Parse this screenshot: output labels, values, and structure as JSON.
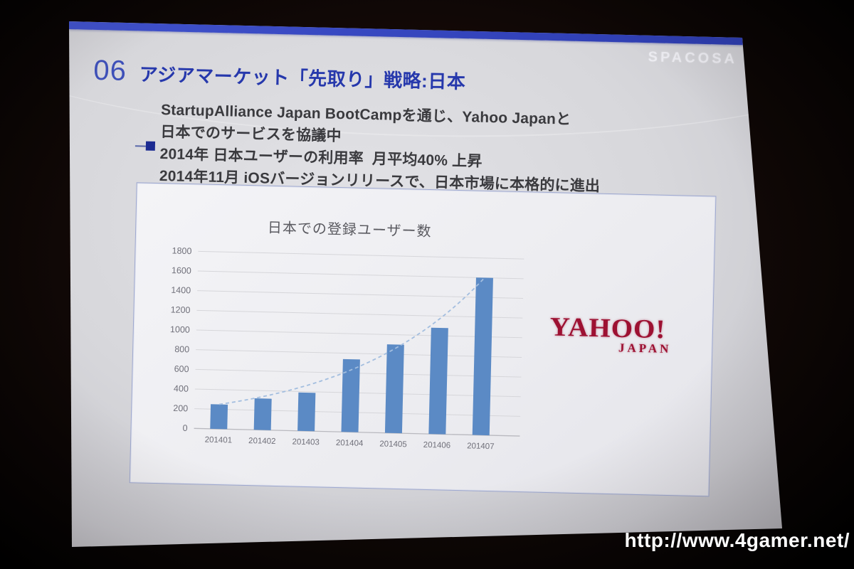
{
  "photo": {
    "watermark_url": "http://www.4gamer.net/"
  },
  "slide": {
    "brand": "SPACOSA",
    "number": "06",
    "title": "アジアマーケット「先取り」戦略:日本",
    "bullets": [
      "StartupAlliance Japan BootCampを通じ、Yahoo Japanと",
      "日本でのサービスを協議中",
      "2014年 日本ユーザーの利用率  月平均40% 上昇",
      "2014年11月 iOSバージョンリリースで、日本市場に本格的に進出"
    ]
  },
  "chart_data": {
    "type": "bar",
    "title": "日本での登録ユーザー数",
    "categories": [
      "201401",
      "201402",
      "201403",
      "201404",
      "201405",
      "201406",
      "201407"
    ],
    "values": [
      250,
      320,
      390,
      740,
      900,
      1080,
      1600
    ],
    "ylim": [
      0,
      1800
    ],
    "yticks": [
      0,
      200,
      400,
      600,
      800,
      1000,
      1200,
      1400,
      1600,
      1800
    ],
    "grid": true,
    "legend": false,
    "xlabel": "",
    "ylabel": "",
    "bar_color": "#5b8ac5",
    "trendline": {
      "shape": "exponential",
      "style": "dashed",
      "color": "#a3bedf"
    }
  },
  "yahoo_logo": {
    "line1": "YAHOO!",
    "line2": "JAPAN",
    "color": "#9d1132"
  },
  "colors": {
    "slide_accent_bar": "#3546c4",
    "title_text": "#2638ac",
    "body_text": "#3a3a3e",
    "bar_fill": "#5b8ac5",
    "yahoo_red": "#9d1132"
  }
}
